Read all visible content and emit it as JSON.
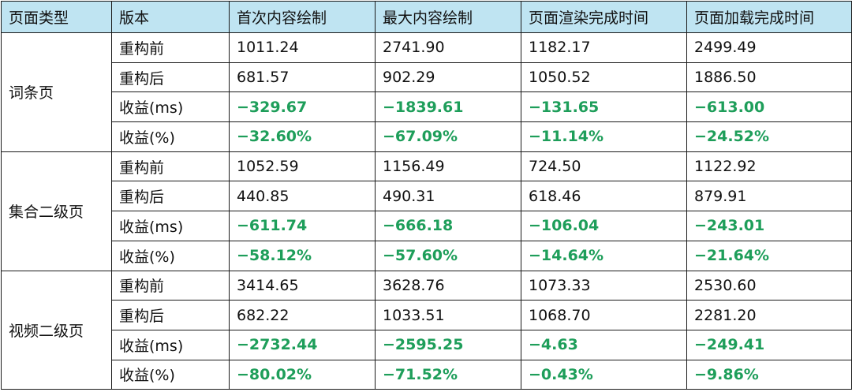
{
  "table": {
    "headers": [
      "页面类型",
      "版本",
      "首次内容绘制",
      "最大内容绘制",
      "页面渲染完成时间",
      "页面加载完成时间"
    ],
    "groups": [
      {
        "name": "词条页",
        "rows": [
          {
            "label": "重构前",
            "values": [
              "1011.24",
              "2741.90",
              "1182.17",
              "2499.49"
            ]
          },
          {
            "label": "重构后",
            "values": [
              "681.57",
              "902.29",
              "1050.52",
              "1886.50"
            ]
          },
          {
            "label": "收益(ms)",
            "values": [
              "−329.67",
              "−1839.61",
              "−131.65",
              "−613.00"
            ]
          },
          {
            "label": "收益(%)",
            "values": [
              "−32.60%",
              "−67.09%",
              "−11.14%",
              "−24.52%"
            ]
          }
        ]
      },
      {
        "name": "集合二级页",
        "rows": [
          {
            "label": "重构前",
            "values": [
              "1052.59",
              "1156.49",
              "724.50",
              "1122.92"
            ]
          },
          {
            "label": "重构后",
            "values": [
              "440.85",
              "490.31",
              "618.46",
              "879.91"
            ]
          },
          {
            "label": "收益(ms)",
            "values": [
              "−611.74",
              "−666.18",
              "−106.04",
              "−243.01"
            ]
          },
          {
            "label": "收益(%)",
            "values": [
              "−58.12%",
              "−57.60%",
              "−14.64%",
              "−21.64%"
            ]
          }
        ]
      },
      {
        "name": "视频二级页",
        "rows": [
          {
            "label": "重构前",
            "values": [
              "3414.65",
              "3628.76",
              "1073.33",
              "2530.60"
            ]
          },
          {
            "label": "重构后",
            "values": [
              "682.22",
              "1033.51",
              "1068.70",
              "2281.20"
            ]
          },
          {
            "label": "收益(ms)",
            "values": [
              "−2732.44",
              "−2595.25",
              "−4.63",
              "−249.41"
            ]
          },
          {
            "label": "收益(%)",
            "values": [
              "−80.02%",
              "−71.52%",
              "−0.43%",
              "−9.86%"
            ]
          }
        ]
      }
    ]
  },
  "colors": {
    "header_background": "#bfe4f2",
    "gain_text": "#1e9e5a",
    "grid_line": "#1a1a1a"
  }
}
